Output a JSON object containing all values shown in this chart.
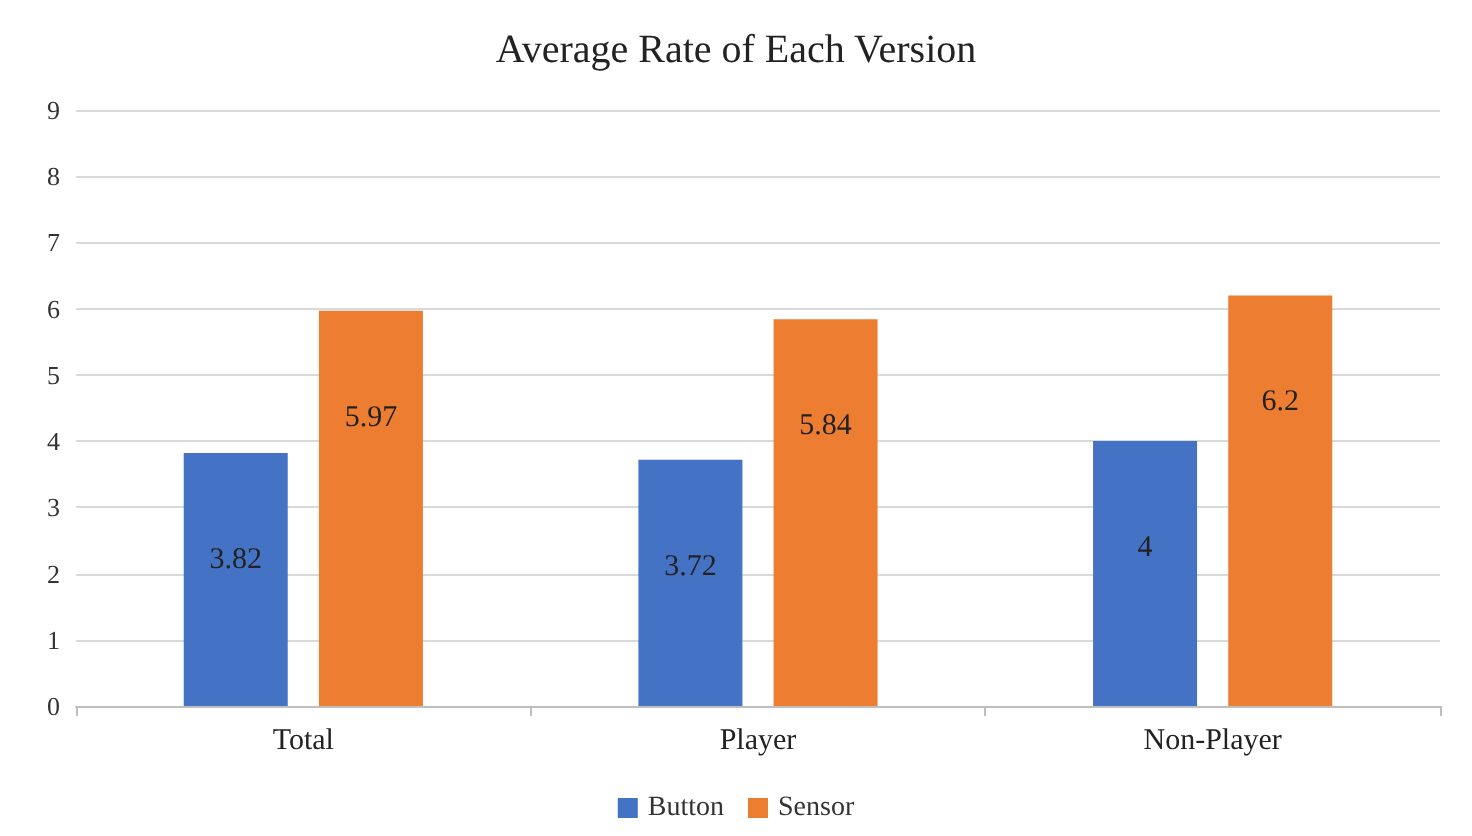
{
  "chart_data": {
    "type": "bar",
    "title": "Average Rate of Each Version",
    "categories": [
      "Total",
      "Player",
      "Non-Player"
    ],
    "series": [
      {
        "name": "Button",
        "color": "#4472c4",
        "values": [
          3.82,
          3.72,
          4
        ]
      },
      {
        "name": "Sensor",
        "color": "#ed7d31",
        "values": [
          5.97,
          5.84,
          6.2
        ]
      }
    ],
    "ylim": [
      0,
      9
    ],
    "yticks": [
      0,
      1,
      2,
      3,
      4,
      5,
      6,
      7,
      8,
      9
    ],
    "grid": "y",
    "legend": "bottom",
    "data_labels": true
  }
}
